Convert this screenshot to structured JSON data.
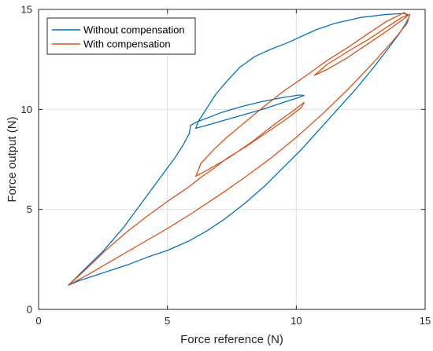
{
  "chart_data": {
    "type": "line",
    "title": "",
    "xlabel": "Force reference (N)",
    "ylabel": "Force output (N)",
    "xlim": [
      0,
      15
    ],
    "ylim": [
      0,
      15
    ],
    "xticks": [
      0,
      5,
      10,
      15
    ],
    "yticks": [
      0,
      5,
      10,
      15
    ],
    "grid": true,
    "legend": {
      "position": "top-left",
      "box": true
    },
    "series": [
      {
        "name": "Without compensation",
        "color": "#0072bd",
        "points": [
          [
            1.15,
            1.2
          ],
          [
            1.6,
            1.45
          ],
          [
            2.2,
            1.7
          ],
          [
            2.8,
            1.95
          ],
          [
            3.5,
            2.25
          ],
          [
            4.2,
            2.6
          ],
          [
            5.0,
            2.95
          ],
          [
            5.8,
            3.4
          ],
          [
            6.5,
            3.9
          ],
          [
            7.2,
            4.5
          ],
          [
            8.0,
            5.3
          ],
          [
            8.8,
            6.2
          ],
          [
            9.5,
            7.1
          ],
          [
            10.2,
            8.0
          ],
          [
            10.9,
            9.0
          ],
          [
            11.6,
            10.0
          ],
          [
            12.3,
            11.0
          ],
          [
            13.0,
            12.1
          ],
          [
            13.6,
            13.1
          ],
          [
            14.0,
            13.8
          ],
          [
            14.25,
            14.3
          ],
          [
            14.4,
            14.7
          ],
          [
            14.2,
            14.8
          ],
          [
            13.5,
            14.75
          ],
          [
            12.5,
            14.6
          ],
          [
            11.5,
            14.3
          ],
          [
            10.8,
            14.0
          ],
          [
            10.2,
            13.65
          ],
          [
            9.6,
            13.3
          ],
          [
            9.0,
            13.0
          ],
          [
            8.4,
            12.65
          ],
          [
            7.8,
            12.1
          ],
          [
            7.3,
            11.4
          ],
          [
            6.9,
            10.8
          ],
          [
            6.6,
            10.2
          ],
          [
            6.35,
            9.7
          ],
          [
            6.2,
            9.4
          ],
          [
            6.1,
            9.05
          ],
          [
            6.5,
            9.2
          ],
          [
            7.2,
            9.45
          ],
          [
            8.0,
            9.75
          ],
          [
            8.8,
            10.05
          ],
          [
            9.5,
            10.35
          ],
          [
            10.0,
            10.55
          ],
          [
            10.3,
            10.7
          ],
          [
            10.1,
            10.72
          ],
          [
            9.5,
            10.6
          ],
          [
            8.7,
            10.4
          ],
          [
            7.9,
            10.15
          ],
          [
            7.1,
            9.85
          ],
          [
            6.5,
            9.55
          ],
          [
            6.1,
            9.35
          ],
          [
            5.9,
            9.2
          ],
          [
            5.85,
            8.8
          ],
          [
            5.6,
            8.2
          ],
          [
            5.3,
            7.6
          ],
          [
            4.9,
            6.9
          ],
          [
            4.5,
            6.2
          ],
          [
            4.1,
            5.5
          ],
          [
            3.7,
            4.8
          ],
          [
            3.3,
            4.1
          ],
          [
            2.9,
            3.5
          ],
          [
            2.5,
            2.9
          ],
          [
            2.1,
            2.4
          ],
          [
            1.7,
            1.9
          ],
          [
            1.35,
            1.45
          ],
          [
            1.15,
            1.2
          ]
        ]
      },
      {
        "name": "With compensation",
        "color": "#d95319",
        "points": [
          [
            1.15,
            1.2
          ],
          [
            2.0,
            1.8
          ],
          [
            3.0,
            2.55
          ],
          [
            4.0,
            3.3
          ],
          [
            5.0,
            4.05
          ],
          [
            6.0,
            4.85
          ],
          [
            7.0,
            5.7
          ],
          [
            8.0,
            6.6
          ],
          [
            9.0,
            7.55
          ],
          [
            10.0,
            8.6
          ],
          [
            11.0,
            9.75
          ],
          [
            12.0,
            11.0
          ],
          [
            13.0,
            12.35
          ],
          [
            13.8,
            13.5
          ],
          [
            14.3,
            14.3
          ],
          [
            14.4,
            14.75
          ],
          [
            14.1,
            14.6
          ],
          [
            13.5,
            14.1
          ],
          [
            12.8,
            13.5
          ],
          [
            12.0,
            12.9
          ],
          [
            11.2,
            12.25
          ],
          [
            10.7,
            11.7
          ],
          [
            11.2,
            12.0
          ],
          [
            12.0,
            12.6
          ],
          [
            12.8,
            13.3
          ],
          [
            13.6,
            14.0
          ],
          [
            14.3,
            14.65
          ],
          [
            14.2,
            14.85
          ],
          [
            13.5,
            14.4
          ],
          [
            12.8,
            13.8
          ],
          [
            12.0,
            13.1
          ],
          [
            11.2,
            12.45
          ],
          [
            10.4,
            11.7
          ],
          [
            9.6,
            11.0
          ],
          [
            8.8,
            10.2
          ],
          [
            8.0,
            9.35
          ],
          [
            7.3,
            8.6
          ],
          [
            6.8,
            8.0
          ],
          [
            6.3,
            7.3
          ],
          [
            6.1,
            6.65
          ],
          [
            6.6,
            7.0
          ],
          [
            7.4,
            7.6
          ],
          [
            8.3,
            8.4
          ],
          [
            9.2,
            9.3
          ],
          [
            9.9,
            9.95
          ],
          [
            10.3,
            10.35
          ],
          [
            10.2,
            10.1
          ],
          [
            9.6,
            9.5
          ],
          [
            8.8,
            8.8
          ],
          [
            8.0,
            8.1
          ],
          [
            7.3,
            7.55
          ],
          [
            6.8,
            7.05
          ],
          [
            6.3,
            6.6
          ],
          [
            5.8,
            6.1
          ],
          [
            5.0,
            5.4
          ],
          [
            4.2,
            4.65
          ],
          [
            3.4,
            3.85
          ],
          [
            2.6,
            2.95
          ],
          [
            1.8,
            1.95
          ],
          [
            1.15,
            1.2
          ]
        ]
      }
    ]
  }
}
